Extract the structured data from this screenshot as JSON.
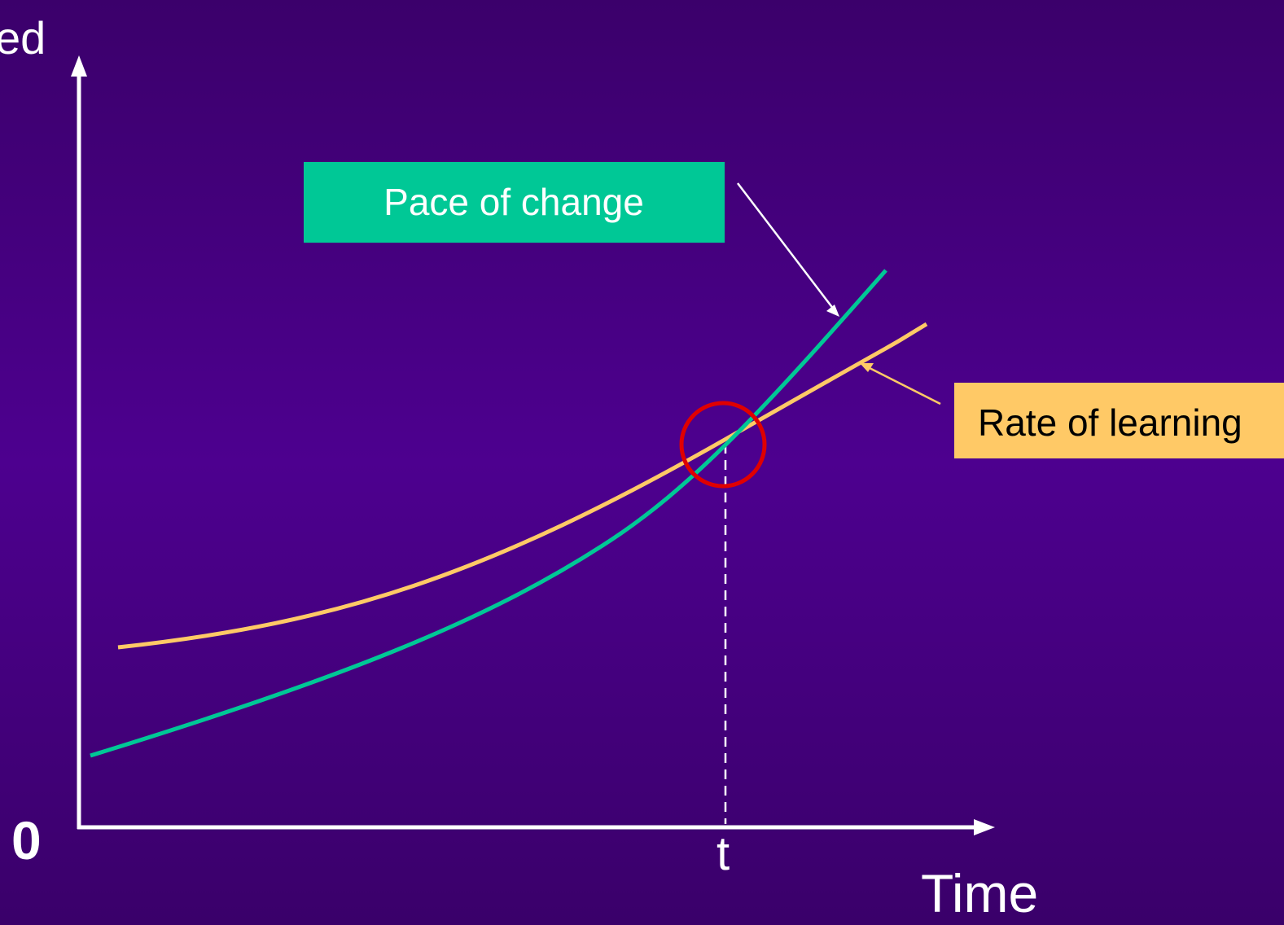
{
  "slide": {
    "background_top": "#3b006b",
    "background_mid": "#4d008f",
    "background_bottom": "#3a006a"
  },
  "axes": {
    "y_label": "ed",
    "origin_label": "0",
    "x_label": "Time",
    "marker_label": "t",
    "color": "#ffffff"
  },
  "curves": {
    "pace_of_change": {
      "label": "Pace of change",
      "color": "#00c896"
    },
    "rate_of_learning": {
      "label": "Rate of learning",
      "color": "#ffc966"
    }
  },
  "callouts": {
    "pace_label": "Pace of change",
    "pace_box_color": "#00c896",
    "learning_label": "Rate of learning",
    "learning_box_color": "#ffc966",
    "learning_text_color": "#000000"
  },
  "highlight": {
    "color": "#e00000",
    "meaning": "intersection"
  }
}
